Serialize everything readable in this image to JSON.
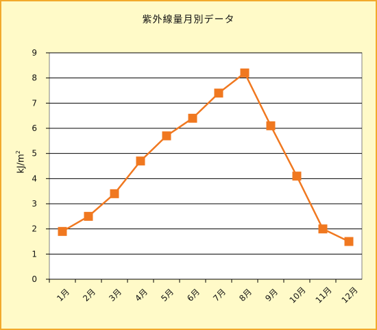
{
  "chart_data": {
    "type": "line",
    "title": "紫外線量月別データ",
    "ylabel_main": "kJ/m",
    "ylabel_sup": "2",
    "categories": [
      "1月",
      "2月",
      "3月",
      "4月",
      "5月",
      "6月",
      "7月",
      "8月",
      "9月",
      "10月",
      "11月",
      "12月"
    ],
    "series": [
      {
        "values": [
          1.9,
          2.5,
          3.4,
          4.7,
          5.7,
          6.4,
          7.4,
          8.2,
          6.1,
          4.1,
          2.0,
          1.5
        ]
      }
    ],
    "ylim": [
      0,
      9
    ],
    "yticks": [
      "0",
      "1",
      "2",
      "3",
      "4",
      "5",
      "6",
      "7",
      "8",
      "9"
    ],
    "grid": true,
    "colors": {
      "line": "#f07820",
      "marker": "#f07820",
      "plot_bg": "#ffffff",
      "frame_bg": "#fffac8",
      "frame_border": "#f2a92c",
      "grid": "#000000"
    }
  }
}
